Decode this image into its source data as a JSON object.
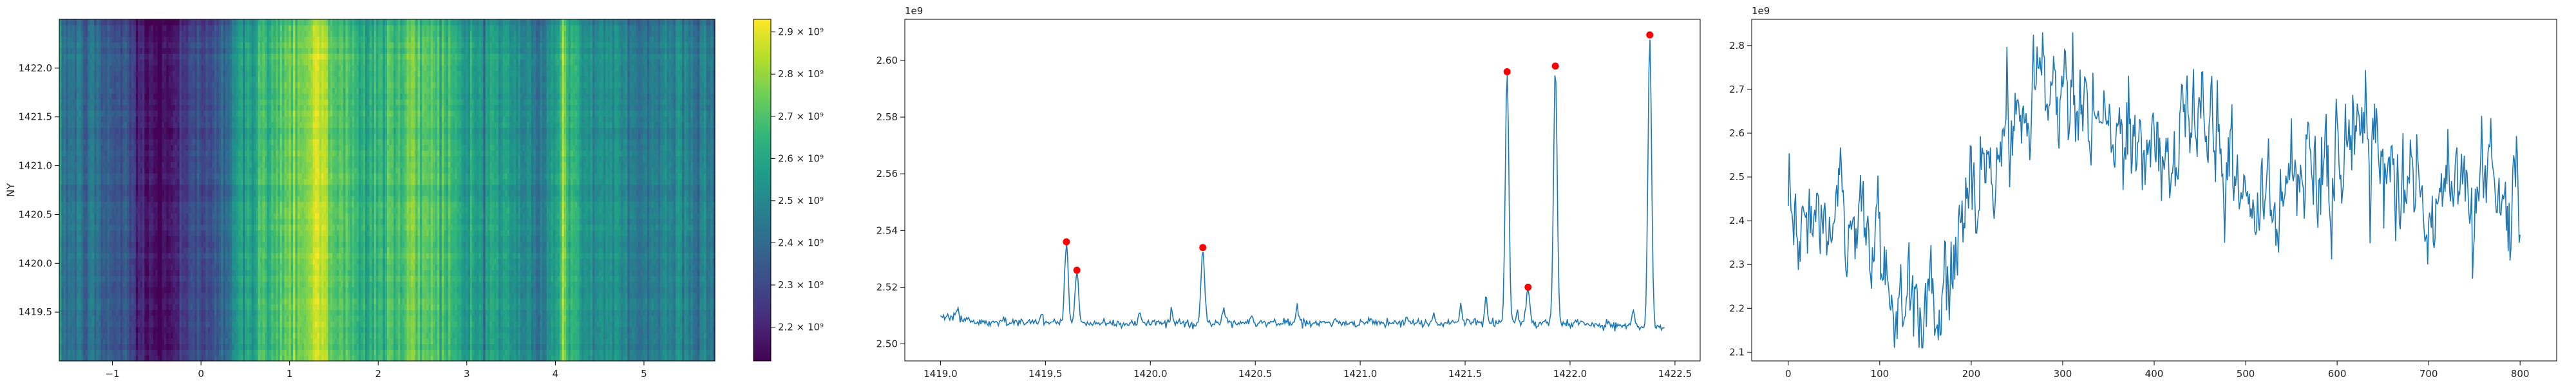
{
  "chart_data": [
    {
      "type": "heatmap",
      "xlabel": "",
      "ylabel": "NY",
      "xlim": [
        -1.6,
        5.8
      ],
      "ylim": [
        1419.0,
        1422.5
      ],
      "x_ticks": [
        "−1",
        "0",
        "1",
        "2",
        "3",
        "4",
        "5"
      ],
      "x_tick_values": [
        -1,
        0,
        1,
        2,
        3,
        4,
        5
      ],
      "y_ticks": [
        "1419.5",
        "1420.0",
        "1420.5",
        "1421.0",
        "1421.5",
        "1422.0"
      ],
      "y_tick_values": [
        1419.5,
        1420.0,
        1420.5,
        1421.0,
        1421.5,
        1422.0
      ],
      "colormap": "viridis",
      "colorbar": {
        "vmin": 2120000000.0,
        "vmax": 2930000000.0,
        "ticks": [
          "2.2 × 10⁹",
          "2.3 × 10⁹",
          "2.4 × 10⁹",
          "2.5 × 10⁹",
          "2.6 × 10⁹",
          "2.7 × 10⁹",
          "2.8 × 10⁹",
          "2.9 × 10⁹"
        ],
        "tick_values": [
          2200000000.0,
          2300000000.0,
          2400000000.0,
          2500000000.0,
          2600000000.0,
          2700000000.0,
          2800000000.0,
          2900000000.0
        ]
      },
      "column_profile_x": [
        -1.6,
        -1.2,
        -0.8,
        -0.6,
        -0.5,
        -0.3,
        0.0,
        0.3,
        0.6,
        0.8,
        1.0,
        1.2,
        1.35,
        1.5,
        1.8,
        2.0,
        2.3,
        2.6,
        2.8,
        3.0,
        3.3,
        3.6,
        3.9,
        4.1,
        4.3,
        4.6,
        5.0,
        5.4,
        5.8
      ],
      "column_profile_values": [
        2450000000.0,
        2400000000.0,
        2300000000.0,
        2150000000.0,
        2130000000.0,
        2200000000.0,
        2300000000.0,
        2450000000.0,
        2600000000.0,
        2700000000.0,
        2750000000.0,
        2800000000.0,
        2880000000.0,
        2750000000.0,
        2600000000.0,
        2650000000.0,
        2700000000.0,
        2750000000.0,
        2650000000.0,
        2550000000.0,
        2600000000.0,
        2500000000.0,
        2450000000.0,
        2750000000.0,
        2550000000.0,
        2500000000.0,
        2450000000.0,
        2500000000.0,
        2450000000.0
      ]
    },
    {
      "type": "line",
      "xlabel": "",
      "ylabel": "",
      "offset_label": "1e9",
      "xlim": [
        1418.83,
        1422.62
      ],
      "ylim": [
        2494000000.0,
        2614500000.0
      ],
      "x_ticks": [
        "1419.0",
        "1419.5",
        "1420.0",
        "1420.5",
        "1421.0",
        "1421.5",
        "1422.0",
        "1422.5"
      ],
      "x_tick_values": [
        1419.0,
        1419.5,
        1420.0,
        1420.5,
        1421.0,
        1421.5,
        1422.0,
        1422.5
      ],
      "y_ticks": [
        "2.50",
        "2.52",
        "2.54",
        "2.56",
        "2.58",
        "2.60"
      ],
      "y_tick_values": [
        2500000000.0,
        2520000000.0,
        2540000000.0,
        2560000000.0,
        2580000000.0,
        2600000000.0
      ],
      "series_color": "#1f77b4",
      "baseline": 2508000000.0,
      "peaks_x": [
        1419.6,
        1419.65,
        1420.25,
        1421.7,
        1421.8,
        1421.93,
        1422.38
      ],
      "peaks_y": [
        2536000000.0,
        2526000000.0,
        2534000000.0,
        2596000000.0,
        2520000000.0,
        2598000000.0,
        2609000000.0
      ],
      "peak_marker_color": "#ff0000",
      "minor_bumps_x": [
        1419.08,
        1419.3,
        1419.48,
        1419.95,
        1420.1,
        1420.35,
        1420.48,
        1420.7,
        1420.88,
        1421.05,
        1421.22,
        1421.35,
        1421.48,
        1421.6,
        1421.75,
        1422.15,
        1422.3,
        1422.47
      ],
      "minor_bumps_y": [
        2512000000.0,
        2510000000.0,
        2511000000.0,
        2512000000.0,
        2512000000.0,
        2513000000.0,
        2510000000.0,
        2514000000.0,
        2510000000.0,
        2510000000.0,
        2510000000.0,
        2511000000.0,
        2514000000.0,
        2518000000.0,
        2512000000.0,
        2508000000.0,
        2514000000.0,
        2506000000.0
      ]
    },
    {
      "type": "line",
      "xlabel": "",
      "ylabel": "",
      "offset_label": "1e9",
      "xlim": [
        -40,
        840
      ],
      "ylim": [
        2080000000.0,
        2860000000.0
      ],
      "x_ticks": [
        "0",
        "100",
        "200",
        "300",
        "400",
        "500",
        "600",
        "700",
        "800"
      ],
      "x_tick_values": [
        0,
        100,
        200,
        300,
        400,
        500,
        600,
        700,
        800
      ],
      "y_ticks": [
        "2.1",
        "2.2",
        "2.3",
        "2.4",
        "2.5",
        "2.6",
        "2.7",
        "2.8"
      ],
      "y_tick_values": [
        2100000000.0,
        2200000000.0,
        2300000000.0,
        2400000000.0,
        2500000000.0,
        2600000000.0,
        2700000000.0,
        2800000000.0
      ],
      "series_color": "#1f77b4",
      "num_points": 801,
      "trend_x": [
        0,
        30,
        60,
        85,
        100,
        125,
        150,
        180,
        210,
        240,
        265,
        300,
        330,
        360,
        400,
        450,
        500,
        550,
        600,
        625,
        660,
        700,
        750,
        790
      ],
      "trend_y": [
        2380000000.0,
        2450000000.0,
        2420000000.0,
        2380000000.0,
        2260000000.0,
        2180000000.0,
        2220000000.0,
        2330000000.0,
        2500000000.0,
        2630000000.0,
        2670000000.0,
        2720000000.0,
        2650000000.0,
        2600000000.0,
        2580000000.0,
        2630000000.0,
        2450000000.0,
        2480000000.0,
        2520000000.0,
        2620000000.0,
        2520000000.0,
        2470000000.0,
        2500000000.0,
        2460000000.0
      ]
    }
  ]
}
